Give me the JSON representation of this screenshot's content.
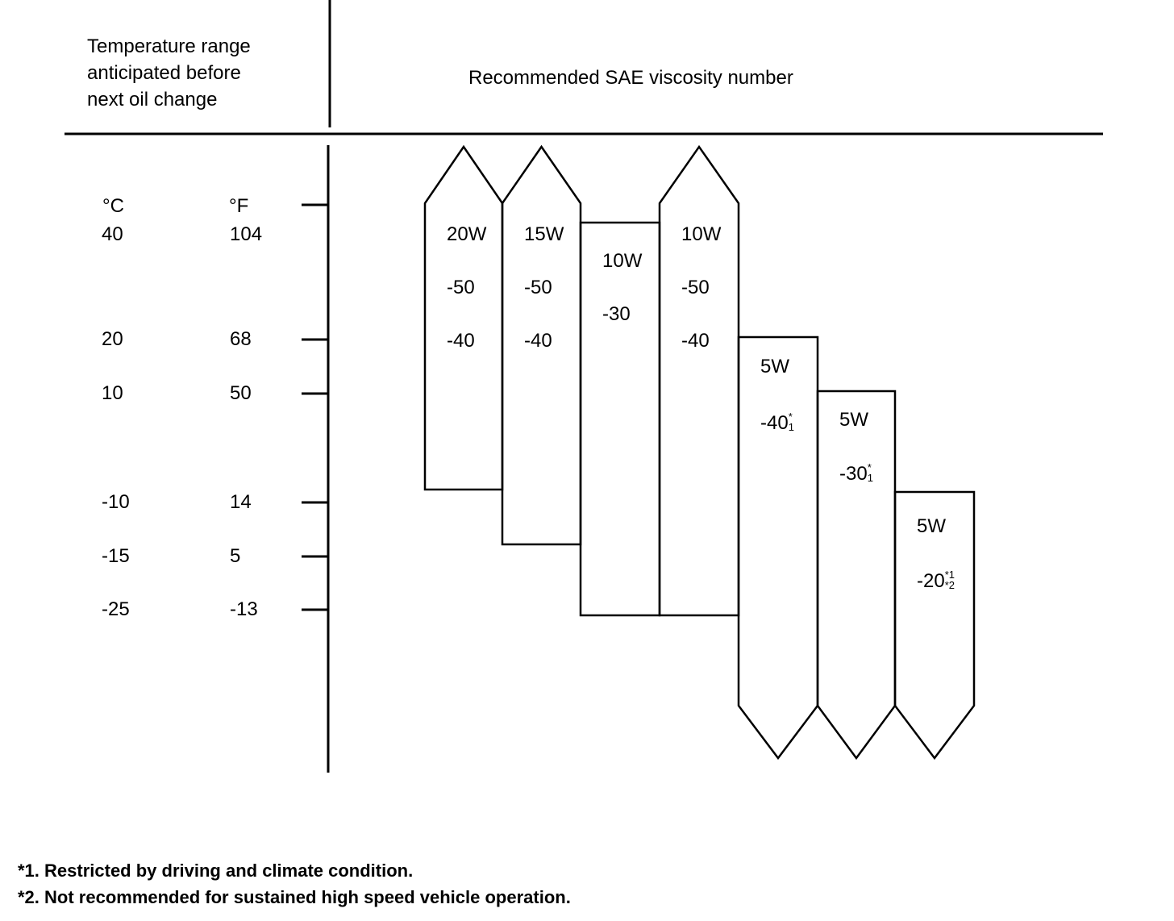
{
  "header": {
    "temperature_heading": [
      "Temperature range",
      "anticipated before",
      "next oil change"
    ],
    "viscosity_heading": "Recommended SAE viscosity number"
  },
  "units": {
    "celsius": "°C",
    "fahrenheit": "°F"
  },
  "scale": [
    {
      "c": "40",
      "f": "104"
    },
    {
      "c": "20",
      "f": "68"
    },
    {
      "c": "10",
      "f": "50"
    },
    {
      "c": "-10",
      "f": "14"
    },
    {
      "c": "-15",
      "f": "5"
    },
    {
      "c": "-25",
      "f": "-13"
    }
  ],
  "grades": [
    {
      "w": "20W",
      "lines": [
        "-50",
        "-40"
      ],
      "top": "arrow"
    },
    {
      "w": "15W",
      "lines": [
        "-50",
        "-40"
      ],
      "top": "arrow"
    },
    {
      "w": "10W",
      "lines": [
        "-30"
      ]
    },
    {
      "w": "10W",
      "lines": [
        "-50",
        "-40"
      ],
      "top": "arrow"
    },
    {
      "w": "5W",
      "lines": [
        "-40"
      ],
      "note": "*",
      "note_sub": "1",
      "bottom": "arrow"
    },
    {
      "w": "5W",
      "lines": [
        "-30"
      ],
      "note": "*",
      "note_sub": "1",
      "bottom": "arrow"
    },
    {
      "w": "5W",
      "lines": [
        "-20"
      ],
      "note": "*1",
      "note_sub": "*2",
      "bottom": "arrow"
    }
  ],
  "footnotes": [
    "*1. Restricted by driving and climate condition.",
    "*2. Not recommended for sustained high speed vehicle operation."
  ]
}
